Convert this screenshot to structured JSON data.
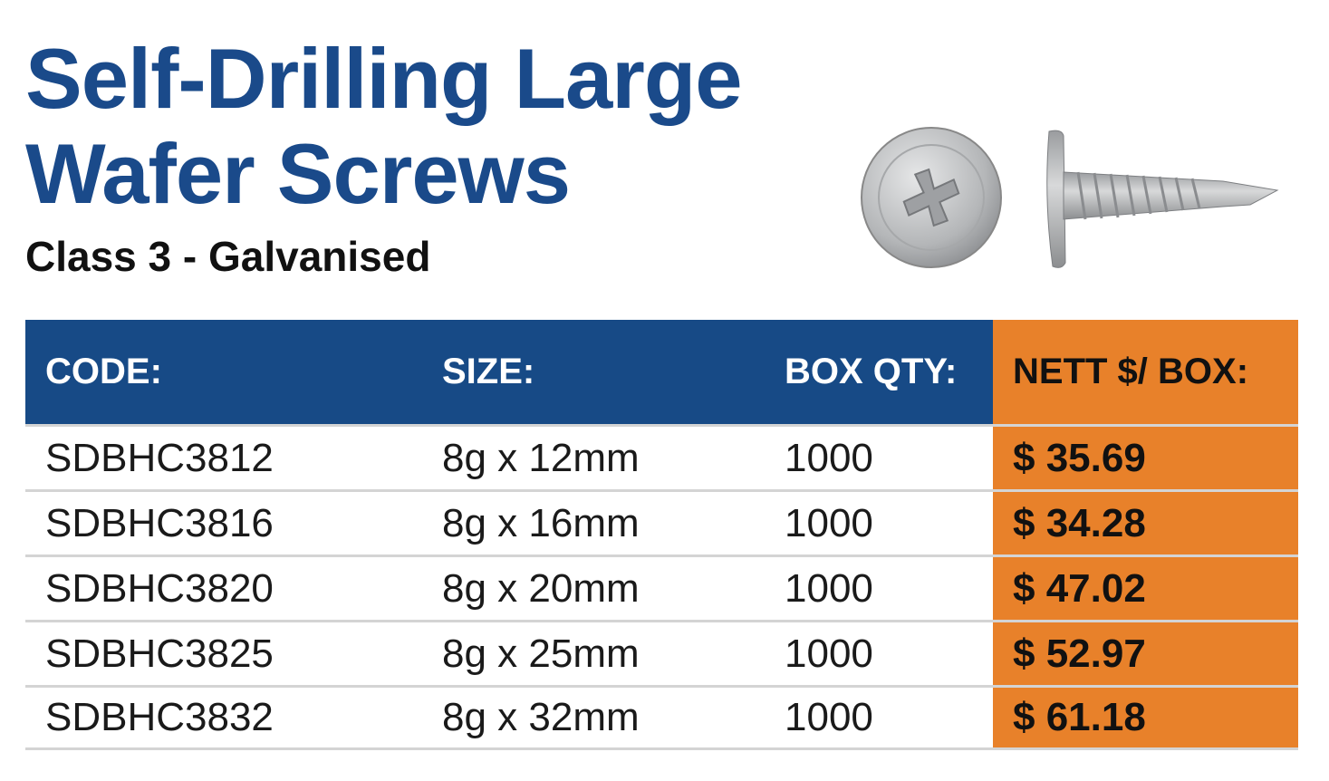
{
  "header": {
    "title_lines": [
      "Self-Drilling Large",
      "Wafer Screws"
    ],
    "subtitle": "Class 3 - Galvanised"
  },
  "table": {
    "columns": [
      "CODE:",
      "SIZE:",
      "BOX QTY:",
      "NETT $/ BOX:"
    ],
    "rows": [
      [
        "SDBHC3812",
        "8g x 12mm",
        "1000",
        "$ 35.69"
      ],
      [
        "SDBHC3816",
        "8g x 16mm",
        "1000",
        "$ 34.28"
      ],
      [
        "SDBHC3820",
        "8g x 20mm",
        "1000",
        "$ 47.02"
      ],
      [
        "SDBHC3825",
        "8g x 25mm",
        "1000",
        "$ 52.97"
      ],
      [
        "SDBHC3832",
        "8g x 32mm",
        "1000",
        "$ 61.18"
      ]
    ]
  }
}
